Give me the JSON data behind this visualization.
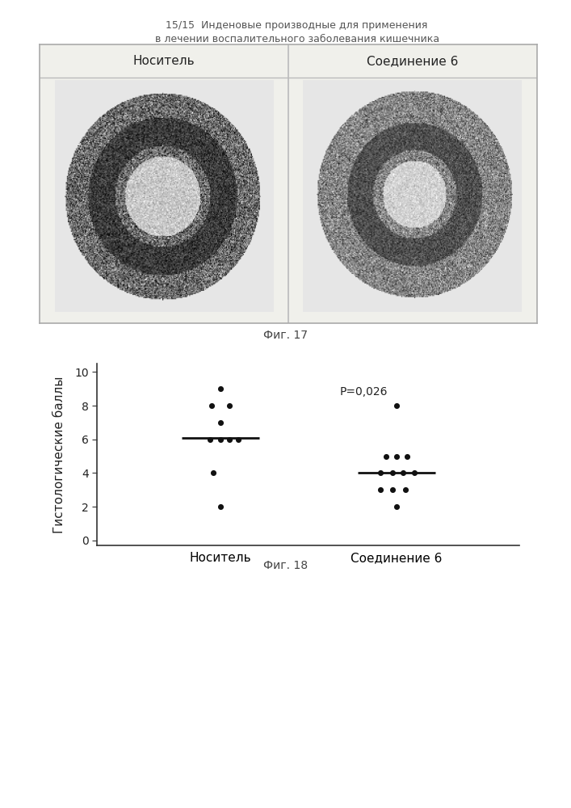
{
  "header_line1": "15/15  Инденовые производные для применения",
  "header_line2": "в лечении воспалительного заболевания кишечника",
  "fig17_label": "Фиг. 17",
  "fig18_label": "Фиг. 18",
  "col1_label": "Носитель",
  "col2_label": "Соединение 6",
  "ylabel": "Гистологические баллы",
  "pvalue_text": "P=0,026",
  "group1_points": [
    9.0,
    8.0,
    8.0,
    7.0,
    6.0,
    6.0,
    6.0,
    6.0,
    4.0,
    2.0
  ],
  "group1_median": 6.1,
  "group2_points": [
    8.0,
    5.0,
    5.0,
    5.0,
    4.0,
    4.0,
    4.0,
    4.0,
    3.0,
    3.0,
    3.0,
    2.0
  ],
  "group2_median": 4.0,
  "yticks": [
    0,
    2,
    4,
    6,
    8,
    10
  ],
  "ylim": [
    -0.3,
    10.5
  ],
  "xlim": [
    0.3,
    2.7
  ],
  "bg_color": "#f0f0eb",
  "dot_color": "#111111",
  "line_color": "#111111",
  "header_color": "#555555",
  "fig_label_color": "#444444"
}
